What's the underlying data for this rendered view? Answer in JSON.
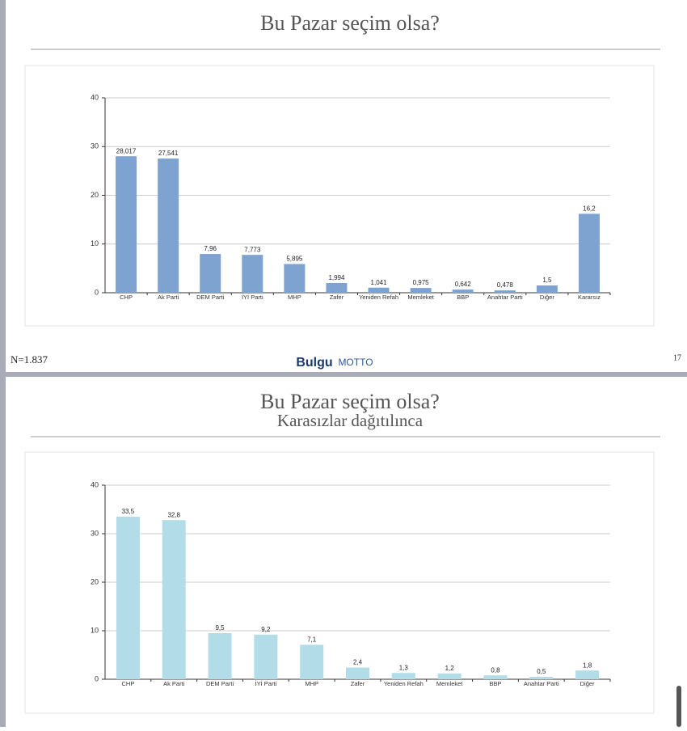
{
  "chart_data": [
    {
      "type": "bar",
      "title": "Bu Pazar seçim olsa?",
      "categories": [
        "CHP",
        "Ak Parti",
        "DEM Parti",
        "İYİ Parti",
        "MHP",
        "Zafer",
        "Yeniden Refah",
        "Memleket",
        "BBP",
        "Anahtar Parti",
        "Diğer",
        "Kararsız"
      ],
      "values": [
        28.017,
        27.541,
        7.96,
        7.773,
        5.895,
        1.994,
        1.041,
        0.975,
        0.642,
        0.478,
        1.5,
        16.2
      ],
      "value_labels": [
        "28,017",
        "27,541",
        "7,96",
        "7,773",
        "5,895",
        "1,994",
        "1,041",
        "0,975",
        "0,642",
        "0,478",
        "1,5",
        "16,2"
      ],
      "color": "#7ea3d1",
      "ylim": [
        0,
        40
      ],
      "yticks": [
        0,
        10,
        20,
        30,
        40
      ],
      "grid": true
    },
    {
      "type": "bar",
      "title": "Bu Pazar seçim olsa?",
      "subtitle": "Karasızlar dağıtılınca",
      "categories": [
        "CHP",
        "Ak Parti",
        "DEM Parti",
        "İYİ Parti",
        "MHP",
        "Zafer",
        "Yeniden Refah",
        "Memleket",
        "BBP",
        "Anahtar Parti",
        "Diğer"
      ],
      "values": [
        33.5,
        32.8,
        9.5,
        9.2,
        7.1,
        2.4,
        1.3,
        1.2,
        0.8,
        0.5,
        1.8
      ],
      "value_labels": [
        "33,5",
        "32,8",
        "9,5",
        "9,2",
        "7,1",
        "2,4",
        "1,3",
        "1,2",
        "0,8",
        "0,5",
        "1,8"
      ],
      "color": "#b2dde8",
      "ylim": [
        0,
        40
      ],
      "yticks": [
        0,
        10,
        20,
        30,
        40
      ],
      "grid": true
    }
  ],
  "footer": {
    "sample": "N=1.837",
    "page": "17",
    "logos": [
      "Bulgu",
      "MOTTO"
    ]
  }
}
